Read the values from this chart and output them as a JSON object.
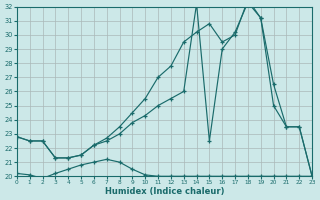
{
  "xlabel": "Humidex (Indice chaleur)",
  "background_color": "#cce8e8",
  "grid_color": "#aab8b8",
  "line_color": "#1a6b6b",
  "xlim": [
    0,
    23
  ],
  "ylim": [
    20,
    32
  ],
  "xticks": [
    0,
    1,
    2,
    3,
    4,
    5,
    6,
    7,
    8,
    9,
    10,
    11,
    12,
    13,
    14,
    15,
    16,
    17,
    18,
    19,
    20,
    21,
    22,
    23
  ],
  "yticks": [
    20,
    21,
    22,
    23,
    24,
    25,
    26,
    27,
    28,
    29,
    30,
    31,
    32
  ],
  "series": [
    {
      "x": [
        0,
        1,
        2,
        3,
        4,
        5,
        6,
        7,
        8,
        9,
        10,
        11,
        12,
        13,
        14,
        15,
        16,
        17,
        18,
        19,
        20,
        21,
        22,
        23
      ],
      "y": [
        20.2,
        20.1,
        19.85,
        20.2,
        20.5,
        20.8,
        21.0,
        21.2,
        21.0,
        20.5,
        20.1,
        20.0,
        20.0,
        20.0,
        20.0,
        20.0,
        20.0,
        20.0,
        20.0,
        20.0,
        20.0,
        20.0,
        20.0,
        20.0
      ]
    },
    {
      "x": [
        0,
        1,
        2,
        3,
        4,
        5,
        6,
        7,
        8,
        9,
        10,
        11,
        12,
        13,
        14,
        15,
        16,
        17,
        18,
        19,
        20,
        21,
        22,
        23
      ],
      "y": [
        22.8,
        22.5,
        22.5,
        21.3,
        21.3,
        21.5,
        22.2,
        22.5,
        23.0,
        23.8,
        24.3,
        25.0,
        25.5,
        26.0,
        32.2,
        22.5,
        29.0,
        30.2,
        32.3,
        31.2,
        25.0,
        23.5,
        23.5,
        20.0
      ]
    },
    {
      "x": [
        0,
        1,
        2,
        3,
        4,
        5,
        6,
        7,
        8,
        9,
        10,
        11,
        12,
        13,
        14,
        15,
        16,
        17,
        18,
        19,
        20,
        21,
        22,
        23
      ],
      "y": [
        22.8,
        22.5,
        22.5,
        21.3,
        21.3,
        21.5,
        22.2,
        22.7,
        23.5,
        24.5,
        25.5,
        27.0,
        27.8,
        29.5,
        30.2,
        30.8,
        29.5,
        30.0,
        32.5,
        31.2,
        26.5,
        23.5,
        23.5,
        20.0
      ]
    }
  ]
}
